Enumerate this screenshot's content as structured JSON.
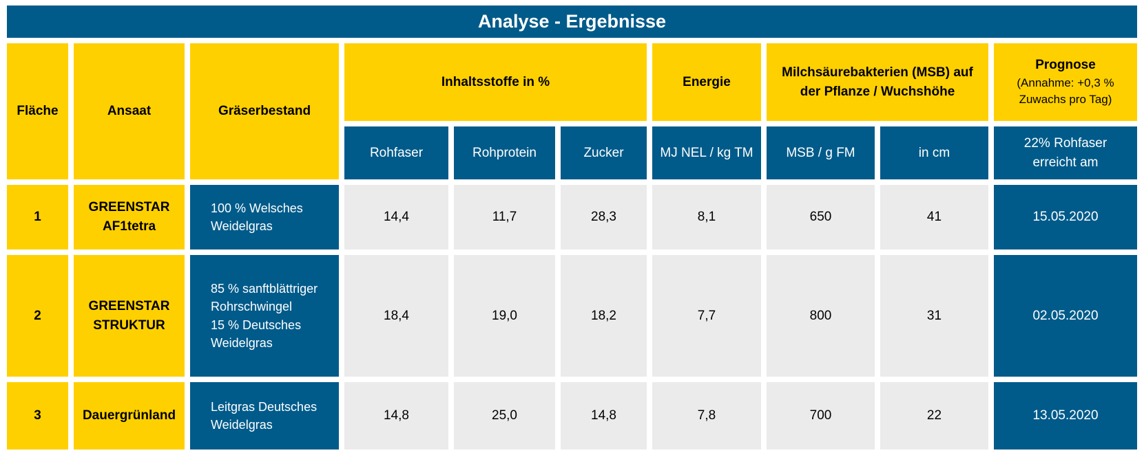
{
  "title": "Analyse - Ergebnisse",
  "headers": {
    "flaeche": "Fläche",
    "ansaat": "Ansaat",
    "graeserbestand": "Gräserbestand",
    "inhaltsstoffe": "Inhaltsstoffe in %",
    "energie": "Energie",
    "msb": "Milchsäurebakterien (MSB) auf der Pflanze / Wuchshöhe",
    "prognose": "Prognose",
    "prognose_note": "(Annahme: +0,3 % Zuwachs pro Tag)"
  },
  "subheaders": {
    "rohfaser": "Rohfaser",
    "rohprotein": "Rohprotein",
    "zucker": "Zucker",
    "energie_unit": "MJ NEL / kg TM",
    "msb_unit": "MSB / g FM",
    "wuchshoehe_unit": "in cm",
    "prognose_sub": "22% Rohfaser erreicht am"
  },
  "rows": [
    {
      "flaeche": "1",
      "ansaat": "GREENSTAR\nAF1tetra",
      "graeserbestand": "100 % Welsches\nWeidelgras",
      "rohfaser": "14,4",
      "rohprotein": "11,7",
      "zucker": "28,3",
      "energie": "8,1",
      "msb": "650",
      "wuchshoehe": "41",
      "datum": "15.05.2020"
    },
    {
      "flaeche": "2",
      "ansaat": "GREENSTAR\nSTRUKTUR",
      "graeserbestand": "85 % sanftblättriger\nRohrschwingel\n15 % Deutsches\nWeidelgras",
      "rohfaser": "18,4",
      "rohprotein": "19,0",
      "zucker": "18,2",
      "energie": "7,7",
      "msb": "800",
      "wuchshoehe": "31",
      "datum": "02.05.2020"
    },
    {
      "flaeche": "3",
      "ansaat": "Dauergrünland",
      "graeserbestand": "Leitgras Deutsches\nWeidelgras",
      "rohfaser": "14,8",
      "rohprotein": "25,0",
      "zucker": "14,8",
      "energie": "7,8",
      "msb": "700",
      "wuchshoehe": "22",
      "datum": "13.05.2020"
    }
  ]
}
